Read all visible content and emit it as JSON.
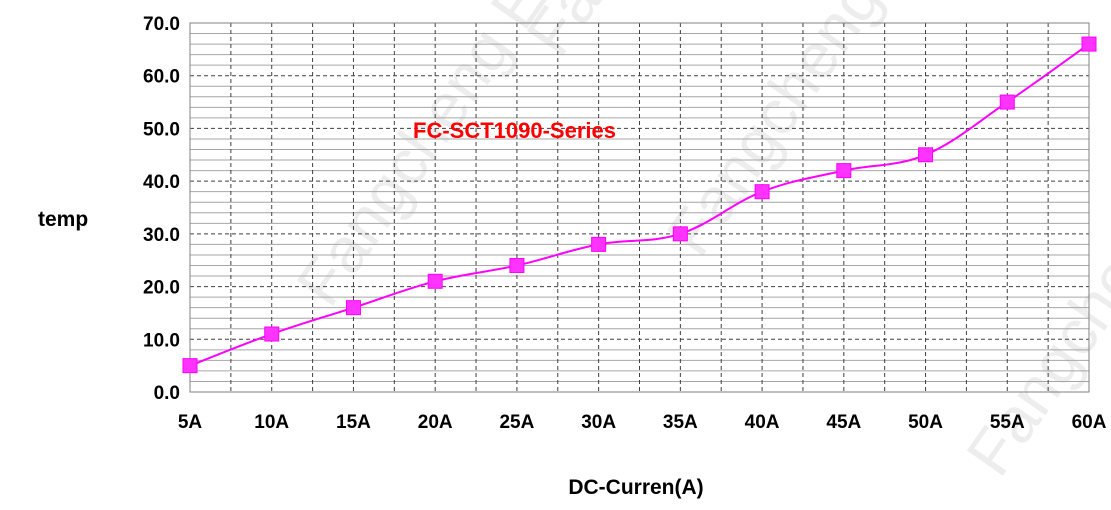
{
  "chart_data": {
    "type": "line",
    "title": "",
    "xlabel": "DC-Curren(A)",
    "ylabel": "temp",
    "categories": [
      "5A",
      "10A",
      "15A",
      "20A",
      "25A",
      "30A",
      "35A",
      "40A",
      "45A",
      "50A",
      "55A",
      "60A"
    ],
    "series": [
      {
        "values": [
          5,
          11,
          16,
          21,
          24,
          28,
          30,
          38,
          42,
          45,
          55,
          66
        ]
      }
    ],
    "ylim": [
      0,
      70
    ],
    "y_ticks": [
      "0.0",
      "10.0",
      "20.0",
      "30.0",
      "40.0",
      "50.0",
      "60.0",
      "70.0"
    ],
    "annotation": "FC-SCT1090-Series",
    "watermark": "Fangcheng Electronic",
    "grid": true,
    "colors": {
      "series": "#ff00ff",
      "marker": "#ff33ff",
      "annotation": "#ff0000",
      "grid": "#7f7f7f"
    }
  }
}
